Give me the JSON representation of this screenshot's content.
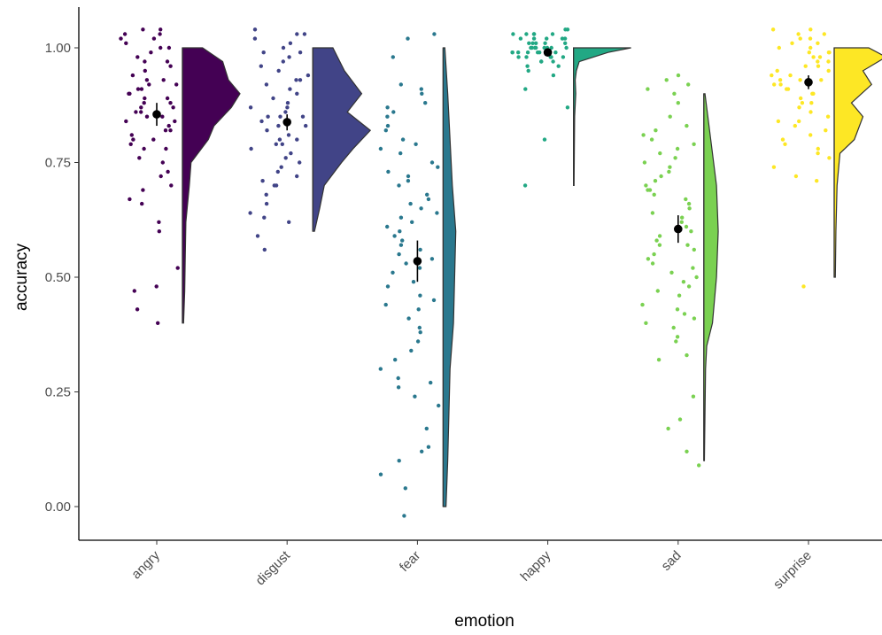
{
  "chart_data": {
    "type": "scatter",
    "subtype": "raincloud",
    "title": "",
    "xlabel": "emotion",
    "ylabel": "accuracy",
    "ylim": [
      -0.07,
      1.08
    ],
    "yticks": [
      "0.00",
      "0.25",
      "0.50",
      "0.75",
      "1.00"
    ],
    "grid": false,
    "legend": "none",
    "categories": [
      "angry",
      "disgust",
      "fear",
      "happy",
      "sad",
      "surprise"
    ],
    "series": [
      {
        "category": "angry",
        "color": "#440154",
        "mean": 0.855,
        "ci": [
          0.83,
          0.88
        ],
        "range": [
          0.4,
          1.0
        ],
        "density": [
          [
            0.4,
            0.02
          ],
          [
            0.47,
            0.04
          ],
          [
            0.55,
            0.05
          ],
          [
            0.62,
            0.06
          ],
          [
            0.7,
            0.12
          ],
          [
            0.75,
            0.15
          ],
          [
            0.8,
            0.45
          ],
          [
            0.83,
            0.55
          ],
          [
            0.87,
            0.85
          ],
          [
            0.9,
            1.0
          ],
          [
            0.93,
            0.8
          ],
          [
            0.97,
            0.7
          ],
          [
            1.0,
            0.35
          ]
        ],
        "points": [
          0.4,
          0.43,
          0.48,
          0.52,
          0.6,
          0.62,
          0.67,
          0.7,
          0.72,
          0.73,
          0.75,
          0.76,
          0.78,
          0.79,
          0.8,
          0.8,
          0.81,
          0.82,
          0.82,
          0.83,
          0.84,
          0.85,
          0.85,
          0.86,
          0.86,
          0.87,
          0.87,
          0.88,
          0.88,
          0.89,
          0.89,
          0.9,
          0.9,
          0.91,
          0.91,
          0.92,
          0.92,
          0.93,
          0.93,
          0.94,
          0.95,
          0.96,
          0.97,
          0.98,
          0.99,
          1.0,
          1.0,
          1.01,
          1.02,
          1.03,
          1.03,
          1.04,
          1.04,
          0.47,
          0.66,
          0.69,
          0.78,
          0.84,
          0.97,
          1.02
        ]
      },
      {
        "category": "disgust",
        "color": "#414487",
        "mean": 0.838,
        "ci": [
          0.82,
          0.855
        ],
        "range": [
          0.6,
          1.0
        ],
        "density": [
          [
            0.6,
            0.03
          ],
          [
            0.65,
            0.12
          ],
          [
            0.7,
            0.2
          ],
          [
            0.75,
            0.5
          ],
          [
            0.78,
            0.7
          ],
          [
            0.82,
            1.0
          ],
          [
            0.86,
            0.6
          ],
          [
            0.9,
            0.85
          ],
          [
            0.95,
            0.55
          ],
          [
            1.0,
            0.35
          ]
        ],
        "points": [
          0.56,
          0.59,
          0.62,
          0.64,
          0.66,
          0.68,
          0.7,
          0.71,
          0.72,
          0.73,
          0.74,
          0.75,
          0.76,
          0.77,
          0.78,
          0.79,
          0.79,
          0.8,
          0.81,
          0.82,
          0.83,
          0.83,
          0.84,
          0.85,
          0.85,
          0.86,
          0.87,
          0.87,
          0.88,
          0.89,
          0.9,
          0.91,
          0.92,
          0.93,
          0.94,
          0.95,
          0.96,
          0.97,
          0.98,
          0.99,
          1.0,
          1.01,
          1.02,
          1.03,
          1.04,
          0.63,
          0.7,
          0.8,
          0.85,
          0.93,
          0.99,
          1.03
        ]
      },
      {
        "category": "fear",
        "color": "#2a788e",
        "mean": 0.535,
        "ci": [
          0.49,
          0.58
        ],
        "range": [
          0.0,
          1.0
        ],
        "density": [
          [
            0.0,
            0.05
          ],
          [
            0.1,
            0.08
          ],
          [
            0.2,
            0.1
          ],
          [
            0.3,
            0.12
          ],
          [
            0.4,
            0.18
          ],
          [
            0.5,
            0.2
          ],
          [
            0.6,
            0.22
          ],
          [
            0.7,
            0.16
          ],
          [
            0.8,
            0.12
          ],
          [
            0.9,
            0.08
          ],
          [
            1.0,
            0.03
          ]
        ],
        "points": [
          -0.02,
          0.04,
          0.07,
          0.1,
          0.12,
          0.13,
          0.17,
          0.22,
          0.24,
          0.27,
          0.28,
          0.3,
          0.32,
          0.34,
          0.36,
          0.38,
          0.39,
          0.41,
          0.43,
          0.45,
          0.46,
          0.48,
          0.49,
          0.51,
          0.52,
          0.53,
          0.55,
          0.56,
          0.57,
          0.58,
          0.59,
          0.6,
          0.61,
          0.62,
          0.64,
          0.65,
          0.66,
          0.67,
          0.68,
          0.7,
          0.71,
          0.72,
          0.73,
          0.75,
          0.77,
          0.78,
          0.79,
          0.8,
          0.82,
          0.83,
          0.85,
          0.87,
          0.88,
          0.9,
          0.91,
          0.92,
          0.98,
          1.02,
          1.03,
          0.26,
          0.44,
          0.54,
          0.63,
          0.74,
          0.86
        ]
      },
      {
        "category": "happy",
        "color": "#22a884",
        "mean": 0.99,
        "ci": [
          0.985,
          0.995
        ],
        "range": [
          0.7,
          1.0
        ],
        "density": [
          [
            0.7,
            0.01
          ],
          [
            0.78,
            0.015
          ],
          [
            0.85,
            0.02
          ],
          [
            0.9,
            0.04
          ],
          [
            0.93,
            0.03
          ],
          [
            0.95,
            0.05
          ],
          [
            0.97,
            0.1
          ],
          [
            0.99,
            0.6
          ],
          [
            1.0,
            1.0
          ]
        ],
        "points": [
          0.7,
          0.8,
          0.87,
          0.91,
          0.94,
          0.95,
          0.96,
          0.96,
          0.97,
          0.97,
          0.97,
          0.98,
          0.98,
          0.98,
          0.98,
          0.99,
          0.99,
          0.99,
          0.99,
          0.99,
          1.0,
          1.0,
          1.0,
          1.0,
          1.0,
          1.0,
          1.01,
          1.01,
          1.01,
          1.01,
          1.02,
          1.02,
          1.02,
          1.02,
          1.03,
          1.03,
          1.03,
          1.03,
          1.04,
          1.04,
          0.99,
          1.0,
          1.01,
          1.02,
          0.98,
          0.99,
          1.0,
          1.03
        ]
      },
      {
        "category": "sad",
        "color": "#7ad151",
        "mean": 0.605,
        "ci": [
          0.575,
          0.635
        ],
        "range": [
          0.1,
          0.9
        ],
        "density": [
          [
            0.1,
            0.01
          ],
          [
            0.2,
            0.02
          ],
          [
            0.3,
            0.03
          ],
          [
            0.35,
            0.05
          ],
          [
            0.4,
            0.15
          ],
          [
            0.5,
            0.22
          ],
          [
            0.6,
            0.25
          ],
          [
            0.7,
            0.22
          ],
          [
            0.8,
            0.12
          ],
          [
            0.9,
            0.02
          ]
        ],
        "points": [
          0.09,
          0.12,
          0.17,
          0.19,
          0.24,
          0.32,
          0.33,
          0.36,
          0.37,
          0.39,
          0.4,
          0.41,
          0.42,
          0.44,
          0.46,
          0.47,
          0.48,
          0.49,
          0.5,
          0.51,
          0.52,
          0.53,
          0.54,
          0.55,
          0.56,
          0.57,
          0.58,
          0.59,
          0.6,
          0.61,
          0.62,
          0.63,
          0.64,
          0.65,
          0.66,
          0.67,
          0.68,
          0.69,
          0.7,
          0.71,
          0.72,
          0.73,
          0.74,
          0.75,
          0.77,
          0.78,
          0.79,
          0.8,
          0.81,
          0.82,
          0.83,
          0.85,
          0.88,
          0.9,
          0.91,
          0.92,
          0.93,
          0.94,
          0.43,
          0.57,
          0.69,
          0.76
        ]
      },
      {
        "category": "surprise",
        "color": "#fde725",
        "mean": 0.925,
        "ci": [
          0.91,
          0.94
        ],
        "range": [
          0.5,
          1.0
        ],
        "density": [
          [
            0.5,
            0.02
          ],
          [
            0.6,
            0.03
          ],
          [
            0.7,
            0.05
          ],
          [
            0.77,
            0.1
          ],
          [
            0.8,
            0.35
          ],
          [
            0.85,
            0.5
          ],
          [
            0.88,
            0.3
          ],
          [
            0.92,
            0.65
          ],
          [
            0.95,
            0.5
          ],
          [
            0.98,
            0.9
          ],
          [
            1.0,
            0.6
          ]
        ],
        "points": [
          0.48,
          0.71,
          0.72,
          0.74,
          0.76,
          0.77,
          0.78,
          0.79,
          0.8,
          0.81,
          0.82,
          0.83,
          0.84,
          0.85,
          0.86,
          0.87,
          0.88,
          0.88,
          0.89,
          0.9,
          0.9,
          0.91,
          0.91,
          0.92,
          0.92,
          0.93,
          0.93,
          0.94,
          0.94,
          0.95,
          0.95,
          0.96,
          0.96,
          0.97,
          0.97,
          0.98,
          0.98,
          0.99,
          0.99,
          1.0,
          1.0,
          1.01,
          1.01,
          1.02,
          1.02,
          1.03,
          1.03,
          1.04,
          1.04,
          0.84,
          0.93,
          0.99
        ]
      }
    ]
  }
}
